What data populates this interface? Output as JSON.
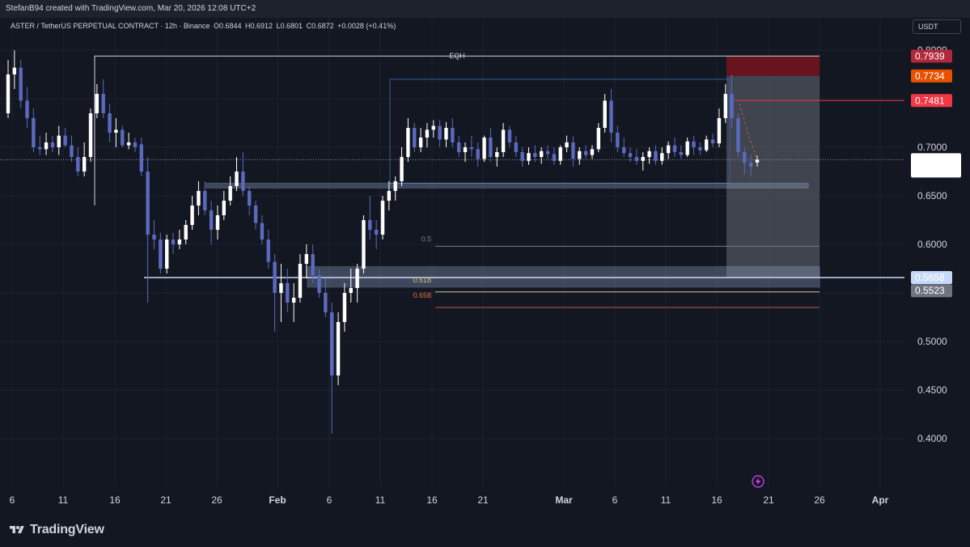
{
  "header": {
    "credit": "StefanB94 created with TradingView.com, Mar 20, 2026 12:08 UTC+2"
  },
  "legend": {
    "symbol": "ASTER / TetherUS PERPETUAL CONTRACT · 12h · Binance",
    "open": "O0.6844",
    "high": "H0.6912",
    "low": "L0.6801",
    "close": "C0.6872",
    "change": "+0.0028 (+0.41%)"
  },
  "currency_button": "USDT",
  "axis": {
    "price_ticks": [
      "0.8000",
      "0.7000",
      "0.6500",
      "0.6000",
      "0.5000",
      "0.4500",
      "0.4000"
    ],
    "time_ticks": [
      {
        "label": "6",
        "bold": false
      },
      {
        "label": "11",
        "bold": false
      },
      {
        "label": "16",
        "bold": false
      },
      {
        "label": "21",
        "bold": false
      },
      {
        "label": "26",
        "bold": false
      },
      {
        "label": "Feb",
        "bold": true
      },
      {
        "label": "6",
        "bold": false
      },
      {
        "label": "11",
        "bold": false
      },
      {
        "label": "16",
        "bold": false
      },
      {
        "label": "21",
        "bold": false
      },
      {
        "label": "Mar",
        "bold": true
      },
      {
        "label": "6",
        "bold": false
      },
      {
        "label": "11",
        "bold": false
      },
      {
        "label": "16",
        "bold": false
      },
      {
        "label": "21",
        "bold": false
      },
      {
        "label": "26",
        "bold": false
      },
      {
        "label": "Apr",
        "bold": true
      }
    ]
  },
  "price_badges": [
    {
      "label": "0.7939",
      "color": "#b2283b"
    },
    {
      "label": "0.7734",
      "color": "#e65100"
    },
    {
      "label": "0.7481",
      "color": "#f23645"
    },
    {
      "label": "0.5658",
      "color": "#c5daf7",
      "text_color": "#131722"
    },
    {
      "label": "0.5523",
      "color": "#707481"
    }
  ],
  "current_price": {
    "label": "0.6872",
    "countdown": "01:51:33"
  },
  "annotations": {
    "eqh": "EQH",
    "fib_05": "0.5",
    "fib_0618": "0.618",
    "fib_0658": "0.658"
  },
  "colors": {
    "bull": "#ffffff",
    "bear": "#5b6abf",
    "background": "#131722",
    "grid": "#1c2030"
  },
  "chart_data": {
    "type": "candlestick",
    "title": "",
    "symbol": "ASTER/USDT",
    "interval": "12h",
    "ylim": [
      0.37,
      0.83
    ],
    "grid": true,
    "candles": [
      {
        "o": 0.735,
        "h": 0.79,
        "l": 0.73,
        "c": 0.775
      },
      {
        "o": 0.775,
        "h": 0.8,
        "l": 0.76,
        "c": 0.782
      },
      {
        "o": 0.782,
        "h": 0.79,
        "l": 0.74,
        "c": 0.748
      },
      {
        "o": 0.748,
        "h": 0.762,
        "l": 0.72,
        "c": 0.73
      },
      {
        "o": 0.73,
        "h": 0.74,
        "l": 0.695,
        "c": 0.7
      },
      {
        "o": 0.7,
        "h": 0.712,
        "l": 0.692,
        "c": 0.698
      },
      {
        "o": 0.698,
        "h": 0.715,
        "l": 0.692,
        "c": 0.705
      },
      {
        "o": 0.705,
        "h": 0.712,
        "l": 0.695,
        "c": 0.7
      },
      {
        "o": 0.7,
        "h": 0.722,
        "l": 0.692,
        "c": 0.712
      },
      {
        "o": 0.712,
        "h": 0.72,
        "l": 0.7,
        "c": 0.702
      },
      {
        "o": 0.702,
        "h": 0.712,
        "l": 0.685,
        "c": 0.69
      },
      {
        "o": 0.69,
        "h": 0.7,
        "l": 0.67,
        "c": 0.675
      },
      {
        "o": 0.675,
        "h": 0.705,
        "l": 0.67,
        "c": 0.69
      },
      {
        "o": 0.69,
        "h": 0.74,
        "l": 0.685,
        "c": 0.735
      },
      {
        "o": 0.735,
        "h": 0.765,
        "l": 0.73,
        "c": 0.755
      },
      {
        "o": 0.755,
        "h": 0.77,
        "l": 0.73,
        "c": 0.735
      },
      {
        "o": 0.735,
        "h": 0.745,
        "l": 0.705,
        "c": 0.715
      },
      {
        "o": 0.715,
        "h": 0.73,
        "l": 0.7,
        "c": 0.718
      },
      {
        "o": 0.718,
        "h": 0.722,
        "l": 0.7,
        "c": 0.702
      },
      {
        "o": 0.702,
        "h": 0.715,
        "l": 0.698,
        "c": 0.705
      },
      {
        "o": 0.705,
        "h": 0.71,
        "l": 0.695,
        "c": 0.7
      },
      {
        "o": 0.703,
        "h": 0.71,
        "l": 0.67,
        "c": 0.675
      },
      {
        "o": 0.675,
        "h": 0.69,
        "l": 0.54,
        "c": 0.61
      },
      {
        "o": 0.61,
        "h": 0.625,
        "l": 0.595,
        "c": 0.605
      },
      {
        "o": 0.605,
        "h": 0.612,
        "l": 0.57,
        "c": 0.575
      },
      {
        "o": 0.575,
        "h": 0.61,
        "l": 0.57,
        "c": 0.605
      },
      {
        "o": 0.605,
        "h": 0.612,
        "l": 0.59,
        "c": 0.6
      },
      {
        "o": 0.6,
        "h": 0.615,
        "l": 0.595,
        "c": 0.605
      },
      {
        "o": 0.605,
        "h": 0.625,
        "l": 0.6,
        "c": 0.62
      },
      {
        "o": 0.62,
        "h": 0.65,
        "l": 0.615,
        "c": 0.64
      },
      {
        "o": 0.64,
        "h": 0.665,
        "l": 0.63,
        "c": 0.655
      },
      {
        "o": 0.655,
        "h": 0.665,
        "l": 0.63,
        "c": 0.635
      },
      {
        "o": 0.635,
        "h": 0.645,
        "l": 0.6,
        "c": 0.615
      },
      {
        "o": 0.615,
        "h": 0.64,
        "l": 0.605,
        "c": 0.63
      },
      {
        "o": 0.63,
        "h": 0.655,
        "l": 0.625,
        "c": 0.645
      },
      {
        "o": 0.645,
        "h": 0.67,
        "l": 0.64,
        "c": 0.66
      },
      {
        "o": 0.66,
        "h": 0.69,
        "l": 0.655,
        "c": 0.675
      },
      {
        "o": 0.675,
        "h": 0.695,
        "l": 0.65,
        "c": 0.655
      },
      {
        "o": 0.655,
        "h": 0.66,
        "l": 0.63,
        "c": 0.64
      },
      {
        "o": 0.64,
        "h": 0.645,
        "l": 0.615,
        "c": 0.622
      },
      {
        "o": 0.622,
        "h": 0.63,
        "l": 0.6,
        "c": 0.605
      },
      {
        "o": 0.605,
        "h": 0.615,
        "l": 0.575,
        "c": 0.582
      },
      {
        "o": 0.582,
        "h": 0.59,
        "l": 0.51,
        "c": 0.55
      },
      {
        "o": 0.55,
        "h": 0.58,
        "l": 0.52,
        "c": 0.56
      },
      {
        "o": 0.56,
        "h": 0.575,
        "l": 0.53,
        "c": 0.54
      },
      {
        "o": 0.54,
        "h": 0.56,
        "l": 0.52,
        "c": 0.545
      },
      {
        "o": 0.545,
        "h": 0.59,
        "l": 0.54,
        "c": 0.58
      },
      {
        "o": 0.58,
        "h": 0.6,
        "l": 0.565,
        "c": 0.59
      },
      {
        "o": 0.59,
        "h": 0.6,
        "l": 0.56,
        "c": 0.568
      },
      {
        "o": 0.568,
        "h": 0.575,
        "l": 0.545,
        "c": 0.55
      },
      {
        "o": 0.55,
        "h": 0.565,
        "l": 0.525,
        "c": 0.53
      },
      {
        "o": 0.53,
        "h": 0.54,
        "l": 0.405,
        "c": 0.465
      },
      {
        "o": 0.465,
        "h": 0.53,
        "l": 0.455,
        "c": 0.52
      },
      {
        "o": 0.52,
        "h": 0.56,
        "l": 0.51,
        "c": 0.55
      },
      {
        "o": 0.55,
        "h": 0.575,
        "l": 0.54,
        "c": 0.555
      },
      {
        "o": 0.555,
        "h": 0.58,
        "l": 0.54,
        "c": 0.575
      },
      {
        "o": 0.575,
        "h": 0.63,
        "l": 0.57,
        "c": 0.625
      },
      {
        "o": 0.625,
        "h": 0.65,
        "l": 0.605,
        "c": 0.615
      },
      {
        "o": 0.615,
        "h": 0.625,
        "l": 0.595,
        "c": 0.61
      },
      {
        "o": 0.61,
        "h": 0.65,
        "l": 0.605,
        "c": 0.645
      },
      {
        "o": 0.645,
        "h": 0.665,
        "l": 0.635,
        "c": 0.655
      },
      {
        "o": 0.655,
        "h": 0.67,
        "l": 0.645,
        "c": 0.665
      },
      {
        "o": 0.665,
        "h": 0.7,
        "l": 0.66,
        "c": 0.69
      },
      {
        "o": 0.69,
        "h": 0.73,
        "l": 0.685,
        "c": 0.72
      },
      {
        "o": 0.72,
        "h": 0.725,
        "l": 0.695,
        "c": 0.7
      },
      {
        "o": 0.7,
        "h": 0.72,
        "l": 0.695,
        "c": 0.71
      },
      {
        "o": 0.71,
        "h": 0.725,
        "l": 0.7,
        "c": 0.718
      },
      {
        "o": 0.718,
        "h": 0.728,
        "l": 0.71,
        "c": 0.722
      },
      {
        "o": 0.722,
        "h": 0.728,
        "l": 0.7,
        "c": 0.708
      },
      {
        "o": 0.708,
        "h": 0.726,
        "l": 0.7,
        "c": 0.72
      },
      {
        "o": 0.72,
        "h": 0.73,
        "l": 0.7,
        "c": 0.705
      },
      {
        "o": 0.705,
        "h": 0.712,
        "l": 0.69,
        "c": 0.695
      },
      {
        "o": 0.695,
        "h": 0.705,
        "l": 0.685,
        "c": 0.7
      },
      {
        "o": 0.7,
        "h": 0.712,
        "l": 0.69,
        "c": 0.698
      },
      {
        "o": 0.698,
        "h": 0.705,
        "l": 0.68,
        "c": 0.688
      },
      {
        "o": 0.688,
        "h": 0.712,
        "l": 0.685,
        "c": 0.71
      },
      {
        "o": 0.71,
        "h": 0.72,
        "l": 0.685,
        "c": 0.69
      },
      {
        "o": 0.69,
        "h": 0.7,
        "l": 0.68,
        "c": 0.695
      },
      {
        "o": 0.695,
        "h": 0.725,
        "l": 0.69,
        "c": 0.718
      },
      {
        "o": 0.718,
        "h": 0.722,
        "l": 0.7,
        "c": 0.705
      },
      {
        "o": 0.705,
        "h": 0.712,
        "l": 0.69,
        "c": 0.695
      },
      {
        "o": 0.695,
        "h": 0.7,
        "l": 0.68,
        "c": 0.686
      },
      {
        "o": 0.686,
        "h": 0.7,
        "l": 0.682,
        "c": 0.694
      },
      {
        "o": 0.694,
        "h": 0.702,
        "l": 0.685,
        "c": 0.69
      },
      {
        "o": 0.69,
        "h": 0.7,
        "l": 0.683,
        "c": 0.696
      },
      {
        "o": 0.696,
        "h": 0.702,
        "l": 0.688,
        "c": 0.693
      },
      {
        "o": 0.693,
        "h": 0.7,
        "l": 0.682,
        "c": 0.686
      },
      {
        "o": 0.686,
        "h": 0.702,
        "l": 0.682,
        "c": 0.7
      },
      {
        "o": 0.7,
        "h": 0.712,
        "l": 0.695,
        "c": 0.705
      },
      {
        "o": 0.705,
        "h": 0.712,
        "l": 0.68,
        "c": 0.688
      },
      {
        "o": 0.688,
        "h": 0.7,
        "l": 0.682,
        "c": 0.696
      },
      {
        "o": 0.696,
        "h": 0.702,
        "l": 0.688,
        "c": 0.692
      },
      {
        "o": 0.692,
        "h": 0.702,
        "l": 0.688,
        "c": 0.698
      },
      {
        "o": 0.698,
        "h": 0.725,
        "l": 0.695,
        "c": 0.72
      },
      {
        "o": 0.72,
        "h": 0.755,
        "l": 0.715,
        "c": 0.748
      },
      {
        "o": 0.748,
        "h": 0.76,
        "l": 0.705,
        "c": 0.715
      },
      {
        "o": 0.715,
        "h": 0.722,
        "l": 0.695,
        "c": 0.7
      },
      {
        "o": 0.7,
        "h": 0.71,
        "l": 0.69,
        "c": 0.694
      },
      {
        "o": 0.694,
        "h": 0.7,
        "l": 0.685,
        "c": 0.69
      },
      {
        "o": 0.69,
        "h": 0.698,
        "l": 0.682,
        "c": 0.686
      },
      {
        "o": 0.686,
        "h": 0.695,
        "l": 0.676,
        "c": 0.69
      },
      {
        "o": 0.69,
        "h": 0.7,
        "l": 0.683,
        "c": 0.696
      },
      {
        "o": 0.696,
        "h": 0.702,
        "l": 0.682,
        "c": 0.686
      },
      {
        "o": 0.686,
        "h": 0.7,
        "l": 0.682,
        "c": 0.694
      },
      {
        "o": 0.694,
        "h": 0.706,
        "l": 0.688,
        "c": 0.702
      },
      {
        "o": 0.702,
        "h": 0.71,
        "l": 0.69,
        "c": 0.695
      },
      {
        "o": 0.695,
        "h": 0.702,
        "l": 0.688,
        "c": 0.692
      },
      {
        "o": 0.692,
        "h": 0.71,
        "l": 0.69,
        "c": 0.706
      },
      {
        "o": 0.706,
        "h": 0.712,
        "l": 0.692,
        "c": 0.7
      },
      {
        "o": 0.7,
        "h": 0.705,
        "l": 0.692,
        "c": 0.697
      },
      {
        "o": 0.697,
        "h": 0.712,
        "l": 0.695,
        "c": 0.708
      },
      {
        "o": 0.708,
        "h": 0.714,
        "l": 0.7,
        "c": 0.704
      },
      {
        "o": 0.704,
        "h": 0.74,
        "l": 0.7,
        "c": 0.73
      },
      {
        "o": 0.73,
        "h": 0.765,
        "l": 0.725,
        "c": 0.755
      },
      {
        "o": 0.755,
        "h": 0.775,
        "l": 0.72,
        "c": 0.73
      },
      {
        "o": 0.73,
        "h": 0.735,
        "l": 0.69,
        "c": 0.695
      },
      {
        "o": 0.695,
        "h": 0.7,
        "l": 0.672,
        "c": 0.684
      },
      {
        "o": 0.684,
        "h": 0.692,
        "l": 0.67,
        "c": 0.68
      },
      {
        "o": 0.6844,
        "h": 0.6912,
        "l": 0.6801,
        "c": 0.6872
      }
    ]
  }
}
